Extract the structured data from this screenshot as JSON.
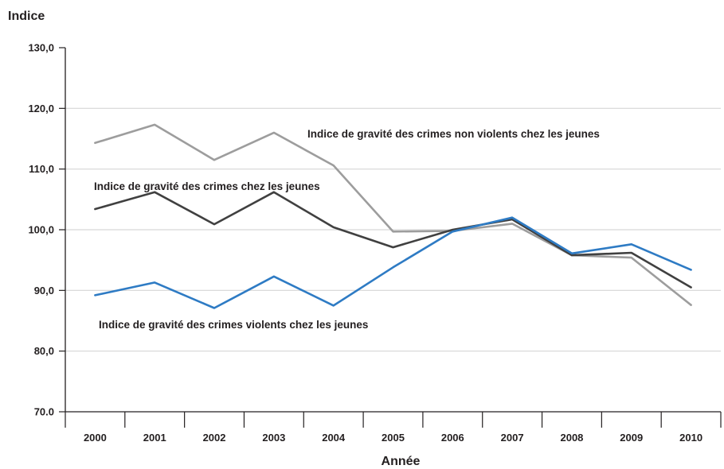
{
  "chart_data": {
    "type": "line",
    "ylabel": "Indice",
    "xlabel": "Année",
    "ylim": [
      70,
      130
    ],
    "grid": true,
    "categories": [
      "2000",
      "2001",
      "2002",
      "2003",
      "2004",
      "2005",
      "2006",
      "2007",
      "2008",
      "2009",
      "2010"
    ],
    "ytick_labels": [
      "70.0",
      "80,0",
      "90,0",
      "100,0",
      "110,0",
      "120,0",
      "130,0"
    ],
    "series": [
      {
        "name": "Indice de gravité des crimes non violents chez les jeunes",
        "color": "#9d9d9d",
        "values": [
          114.3,
          117.3,
          111.5,
          116.0,
          110.6,
          99.7,
          99.8,
          101.0,
          95.8,
          95.4,
          87.6
        ]
      },
      {
        "name": "Indice de gravité des crimes chez les jeunes",
        "color": "#404040",
        "values": [
          103.4,
          106.2,
          100.9,
          106.2,
          100.4,
          97.1,
          100.0,
          101.7,
          95.8,
          96.2,
          90.5
        ]
      },
      {
        "name": "Indice de gravité des crimes violents chez les jeunes",
        "color": "#2e7bc4",
        "values": [
          89.2,
          91.3,
          87.1,
          92.3,
          87.5,
          93.8,
          99.7,
          102.0,
          96.1,
          97.6,
          93.4
        ]
      }
    ]
  }
}
